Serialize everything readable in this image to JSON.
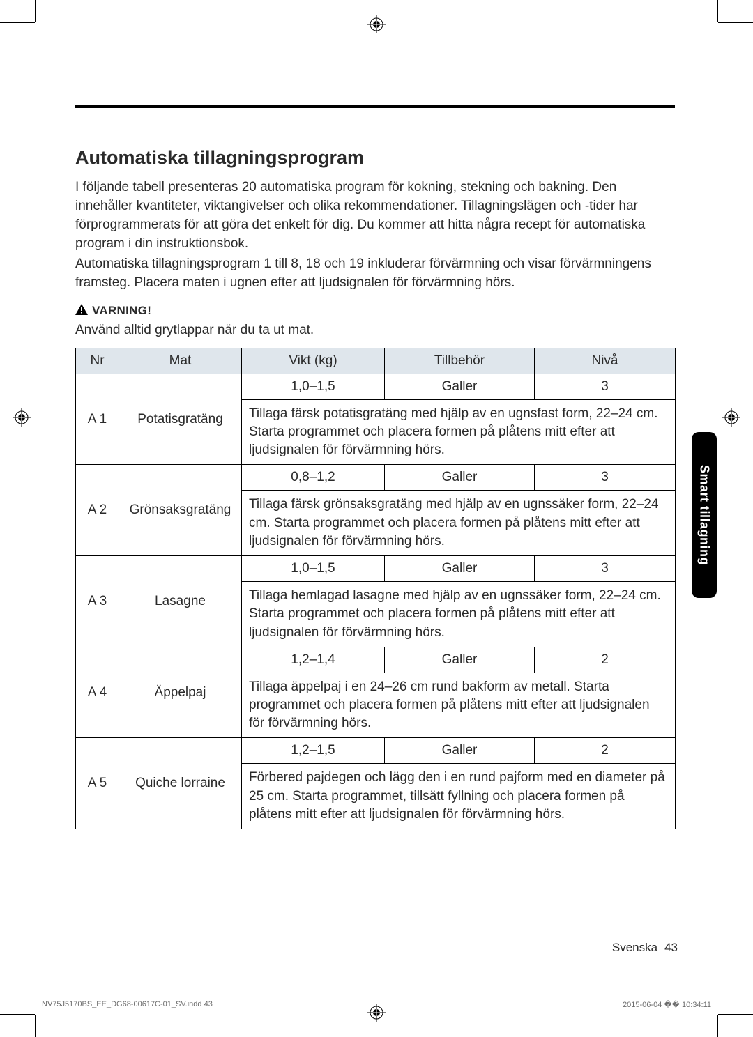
{
  "title": "Automatiska tillagningsprogram",
  "intro1": "I följande tabell presenteras 20 automatiska program för kokning, stekning och bakning. Den innehåller kvantiteter, viktangivelser och olika rekommendationer. Tillagningslägen och -tider har förprogrammerats för att göra det enkelt för dig. Du kommer att hitta några recept för automatiska program i din instruktionsbok.",
  "intro2": "Automatiska tillagningsprogram 1 till 8, 18 och 19 inkluderar förvärmning och visar förvärmningens framsteg. Placera maten i ugnen efter att ljudsignalen för förvärmning hörs.",
  "warning_label": "VARNING!",
  "warning_note": "Använd alltid grytlappar när du ta ut mat.",
  "headers": {
    "nr": "Nr",
    "mat": "Mat",
    "vikt": "Vikt (kg)",
    "tillbehor": "Tillbehör",
    "niva": "Nivå"
  },
  "rows": [
    {
      "nr": "A 1",
      "mat": "Potatisgratäng",
      "vikt": "1,0–1,5",
      "acc": "Galler",
      "lvl": "3",
      "desc": "Tillaga färsk potatisgratäng med hjälp av en ugnsfast form, 22–24 cm. Starta programmet och placera formen på plåtens mitt efter att ljudsignalen för förvärmning hörs."
    },
    {
      "nr": "A 2",
      "mat": "Grönsaksgratäng",
      "vikt": "0,8–1,2",
      "acc": "Galler",
      "lvl": "3",
      "desc": "Tillaga färsk grönsaksgratäng med hjälp av en ugnssäker form, 22–24 cm. Starta programmet och placera formen på plåtens mitt efter att ljudsignalen för förvärmning hörs."
    },
    {
      "nr": "A 3",
      "mat": "Lasagne",
      "vikt": "1,0–1,5",
      "acc": "Galler",
      "lvl": "3",
      "desc": "Tillaga hemlagad lasagne med hjälp av en ugnssäker form, 22–24 cm. Starta programmet och placera formen på plåtens mitt efter att ljudsignalen för förvärmning hörs."
    },
    {
      "nr": "A 4",
      "mat": "Äppelpaj",
      "vikt": "1,2–1,4",
      "acc": "Galler",
      "lvl": "2",
      "desc": "Tillaga äppelpaj i en 24–26 cm rund bakform av metall. Starta programmet och placera formen på plåtens mitt efter att ljudsignalen för förvärmning hörs."
    },
    {
      "nr": "A 5",
      "mat": "Quiche lorraine",
      "vikt": "1,2–1,5",
      "acc": "Galler",
      "lvl": "2",
      "desc": "Förbered pajdegen och lägg den i en rund pajform med en diameter på 25 cm. Starta programmet, tillsätt fyllning och placera formen på plåtens mitt efter att ljudsignalen för förvärmning hörs."
    }
  ],
  "side_tab": "Smart tillagning",
  "footer_lang": "Svenska",
  "footer_page": "43",
  "imprint_left": "NV75J5170BS_EE_DG68-00617C-01_SV.indd   43",
  "imprint_right": "2015-06-04   �� 10:34:11"
}
